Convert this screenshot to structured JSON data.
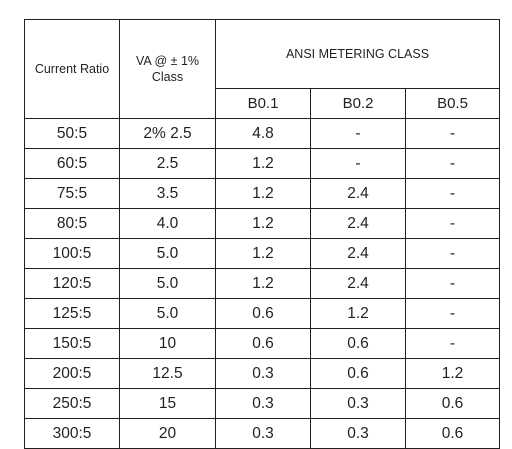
{
  "table": {
    "header": {
      "current_ratio": "Current Ratio",
      "va_line1": "VA @ ± 1%",
      "va_line2": "Class",
      "group": "ANSI METERING CLASS",
      "classes": [
        "B0.1",
        "B0.2",
        "B0.5"
      ]
    },
    "rows": [
      [
        "50:5",
        "2% 2.5",
        "4.8",
        "-",
        "-"
      ],
      [
        "60:5",
        "2.5",
        "1.2",
        "-",
        "-"
      ],
      [
        "75:5",
        "3.5",
        "1.2",
        "2.4",
        "-"
      ],
      [
        "80:5",
        "4.0",
        "1.2",
        "2.4",
        "-"
      ],
      [
        "100:5",
        "5.0",
        "1.2",
        "2.4",
        "-"
      ],
      [
        "120:5",
        "5.0",
        "1.2",
        "2.4",
        "-"
      ],
      [
        "125:5",
        "5.0",
        "0.6",
        "1.2",
        "-"
      ],
      [
        "150:5",
        "10",
        "0.6",
        "0.6",
        "-"
      ],
      [
        "200:5",
        "12.5",
        "0.3",
        "0.6",
        "1.2"
      ],
      [
        "250:5",
        "15",
        "0.3",
        "0.3",
        "0.6"
      ],
      [
        "300:5",
        "20",
        "0.3",
        "0.3",
        "0.6"
      ]
    ]
  }
}
